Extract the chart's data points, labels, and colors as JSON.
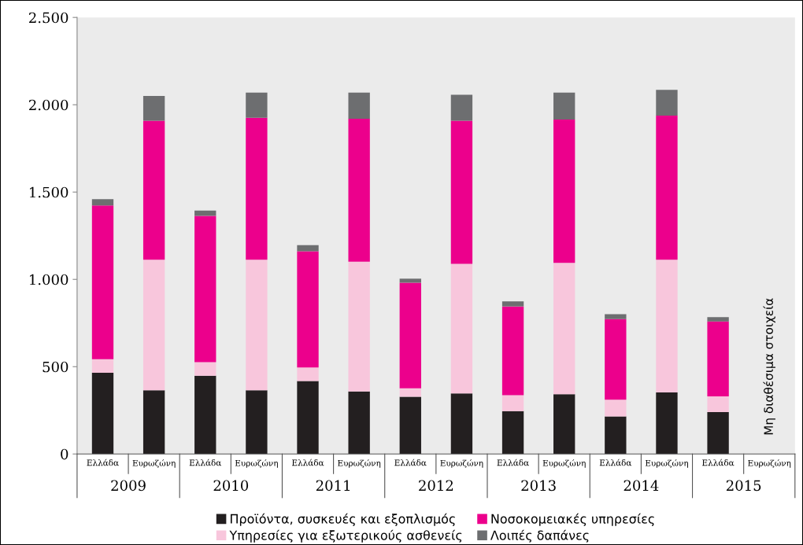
{
  "chart_data": {
    "type": "bar",
    "stacked": true,
    "categories": [
      "Ελλάδα",
      "Ευρωζώνη",
      "Ελλάδα",
      "Ευρωζώνη",
      "Ελλάδα",
      "Ευρωζώνη",
      "Ελλάδα",
      "Ευρωζώνη",
      "Ελλάδα",
      "Ευρωζώνη",
      "Ελλάδα",
      "Ευρωζώνη",
      "Ελλάδα",
      "Ευρωζώνη"
    ],
    "series": [
      {
        "name": "Προϊόντα, συσκευές και εξοπλισμός",
        "color": "#231f20",
        "values": [
          465,
          365,
          448,
          365,
          418,
          358,
          328,
          347,
          245,
          342,
          215,
          352,
          240,
          null
        ]
      },
      {
        "name": "Υπηρεσίες για εξωτερικούς ασθενείς",
        "color": "#f8c6dc",
        "values": [
          78,
          748,
          78,
          748,
          78,
          743,
          48,
          742,
          92,
          753,
          96,
          761,
          90,
          null
        ]
      },
      {
        "name": "Νοσοκομειακές υπηρεσίες",
        "color": "#ec008c",
        "values": [
          880,
          795,
          838,
          813,
          665,
          819,
          605,
          819,
          508,
          820,
          461,
          825,
          429,
          null
        ]
      },
      {
        "name": "Λοιπές δαπάνες",
        "color": "#6d6e70",
        "values": [
          36,
          142,
          30,
          143,
          35,
          149,
          23,
          149,
          29,
          154,
          29,
          147,
          25,
          null
        ]
      }
    ],
    "ylim": [
      0,
      2500
    ],
    "yticks": [
      0,
      {
        "value": 500,
        "label": "500"
      },
      {
        "value": 1000,
        "label": "1.000"
      },
      {
        "value": 1500,
        "label": "1.500"
      },
      {
        "value": 2000,
        "label": "2.000"
      },
      {
        "value": 2500,
        "label": "2.500"
      }
    ],
    "annotations": [
      "2009",
      "2010",
      "2011",
      "2012",
      "2013",
      "2014",
      "2015",
      "Μη διαθέσιμα στοιχεία"
    ],
    "legend": "bottom",
    "grid": false
  }
}
